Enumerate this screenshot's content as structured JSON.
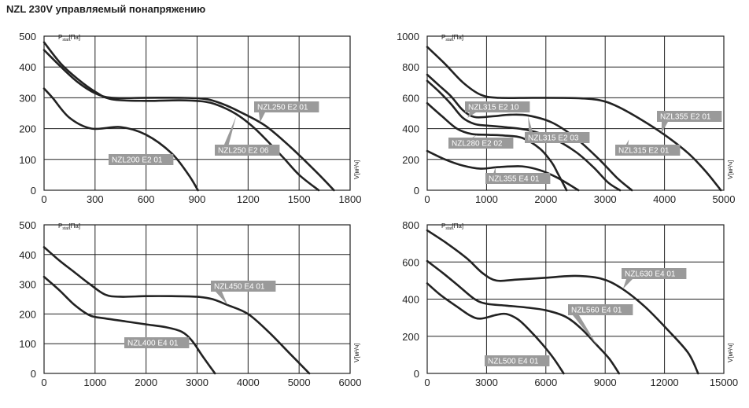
{
  "page_title": "NZL 230V управляемый понапряжению",
  "y_axis_label": {
    "main": "P",
    "sub": "stat",
    "unit": "[Па]"
  },
  "x_axis_label": {
    "main": "V",
    "unit": "[м³/ч]"
  },
  "chart_data": [
    {
      "type": "line",
      "grid": true,
      "xlim": [
        0,
        1800
      ],
      "ylim": [
        0,
        500
      ],
      "xticks": [
        0,
        300,
        600,
        900,
        1200,
        1500,
        1800
      ],
      "yticks": [
        0,
        100,
        200,
        300,
        400,
        500
      ],
      "series": [
        {
          "name": "NZL200 E2 01",
          "points": [
            [
              0,
              330
            ],
            [
              50,
              300
            ],
            [
              150,
              235
            ],
            [
              280,
              200
            ],
            [
              450,
              205
            ],
            [
              600,
              180
            ],
            [
              750,
              120
            ],
            [
              850,
              50
            ],
            [
              905,
              0
            ]
          ]
        },
        {
          "name": "NZL250 E2 06",
          "points": [
            [
              0,
              480
            ],
            [
              100,
              410
            ],
            [
              200,
              360
            ],
            [
              300,
              320
            ],
            [
              400,
              295
            ],
            [
              600,
              290
            ],
            [
              800,
              292
            ],
            [
              950,
              287
            ],
            [
              1050,
              270
            ],
            [
              1150,
              240
            ],
            [
              1250,
              195
            ],
            [
              1400,
              110
            ],
            [
              1500,
              50
            ],
            [
              1615,
              0
            ]
          ]
        },
        {
          "name": "NZL250 E2 01",
          "points": [
            [
              0,
              455
            ],
            [
              100,
              400
            ],
            [
              200,
              350
            ],
            [
              300,
              315
            ],
            [
              400,
              300
            ],
            [
              600,
              300
            ],
            [
              800,
              300
            ],
            [
              950,
              296
            ],
            [
              1050,
              280
            ],
            [
              1150,
              255
            ],
            [
              1300,
              210
            ],
            [
              1450,
              140
            ],
            [
              1600,
              60
            ],
            [
              1705,
              0
            ]
          ]
        }
      ]
    },
    {
      "type": "line",
      "grid": true,
      "xlim": [
        0,
        5000
      ],
      "ylim": [
        0,
        1000
      ],
      "xticks": [
        0,
        1000,
        2000,
        3000,
        4000,
        5000
      ],
      "yticks": [
        0,
        200,
        400,
        600,
        800,
        1000
      ],
      "series": [
        {
          "name": "NZL355 E4 01",
          "points": [
            [
              0,
              255
            ],
            [
              300,
              200
            ],
            [
              600,
              160
            ],
            [
              900,
              140
            ],
            [
              1200,
              150
            ],
            [
              1600,
              155
            ],
            [
              1900,
              130
            ],
            [
              2200,
              80
            ],
            [
              2550,
              0
            ]
          ]
        },
        {
          "name": "NZL280 E2 02",
          "points": [
            [
              0,
              565
            ],
            [
              250,
              480
            ],
            [
              500,
              400
            ],
            [
              750,
              365
            ],
            [
              1000,
              360
            ],
            [
              1300,
              355
            ],
            [
              1600,
              340
            ],
            [
              1900,
              270
            ],
            [
              2100,
              180
            ],
            [
              2200,
              110
            ],
            [
              2350,
              0
            ]
          ]
        },
        {
          "name": "NZL315 E2 10",
          "points": [
            [
              0,
              710
            ],
            [
              200,
              640
            ],
            [
              400,
              560
            ],
            [
              600,
              470
            ],
            [
              800,
              430
            ],
            [
              1000,
              420
            ],
            [
              1300,
              410
            ],
            [
              1700,
              390
            ],
            [
              2100,
              340
            ],
            [
              2500,
              250
            ],
            [
              2800,
              150
            ],
            [
              3050,
              50
            ],
            [
              3250,
              0
            ]
          ]
        },
        {
          "name": "NZL315 E2 03",
          "points": [
            [
              0,
              750
            ],
            [
              200,
              680
            ],
            [
              400,
              610
            ],
            [
              600,
              520
            ],
            [
              800,
              475
            ],
            [
              1100,
              480
            ],
            [
              1400,
              490
            ],
            [
              1700,
              485
            ],
            [
              2100,
              440
            ],
            [
              2500,
              340
            ],
            [
              2900,
              200
            ],
            [
              3200,
              80
            ],
            [
              3450,
              0
            ]
          ]
        },
        {
          "name": "NZL355 E2 01",
          "points": [
            [
              0,
              930
            ],
            [
              300,
              820
            ],
            [
              600,
              700
            ],
            [
              900,
              620
            ],
            [
              1200,
              600
            ],
            [
              1800,
              600
            ],
            [
              2500,
              598
            ],
            [
              2900,
              585
            ],
            [
              3200,
              545
            ],
            [
              3600,
              460
            ],
            [
              4000,
              360
            ],
            [
              4400,
              240
            ],
            [
              4700,
              120
            ],
            [
              4950,
              0
            ]
          ]
        }
      ]
    },
    {
      "type": "line",
      "grid": true,
      "xlim": [
        0,
        6000
      ],
      "ylim": [
        0,
        500
      ],
      "xticks": [
        0,
        1000,
        2000,
        3000,
        4000,
        5000,
        6000
      ],
      "yticks": [
        0,
        100,
        200,
        300,
        400,
        500
      ],
      "series": [
        {
          "name": "NZL400 E4 01",
          "points": [
            [
              0,
              325
            ],
            [
              300,
              280
            ],
            [
              600,
              230
            ],
            [
              900,
              195
            ],
            [
              1200,
              185
            ],
            [
              1600,
              175
            ],
            [
              2000,
              165
            ],
            [
              2400,
              155
            ],
            [
              2700,
              140
            ],
            [
              2900,
              110
            ],
            [
              3100,
              60
            ],
            [
              3350,
              0
            ]
          ]
        },
        {
          "name": "NZL450 E4 01",
          "points": [
            [
              0,
              425
            ],
            [
              300,
              380
            ],
            [
              600,
              340
            ],
            [
              900,
              300
            ],
            [
              1200,
              265
            ],
            [
              1500,
              258
            ],
            [
              2000,
              260
            ],
            [
              2500,
              260
            ],
            [
              3000,
              258
            ],
            [
              3300,
              250
            ],
            [
              3600,
              230
            ],
            [
              4000,
              200
            ],
            [
              4400,
              140
            ],
            [
              4800,
              70
            ],
            [
              5200,
              0
            ]
          ]
        }
      ]
    },
    {
      "type": "line",
      "grid": true,
      "xlim": [
        0,
        15000
      ],
      "ylim": [
        0,
        800
      ],
      "xticks": [
        0,
        3000,
        6000,
        9000,
        12000,
        15000
      ],
      "yticks": [
        0,
        200,
        400,
        600,
        800
      ],
      "series": [
        {
          "name": "NZL500 E4 01",
          "points": [
            [
              0,
              485
            ],
            [
              700,
              420
            ],
            [
              1500,
              360
            ],
            [
              2200,
              310
            ],
            [
              2700,
              295
            ],
            [
              3500,
              315
            ],
            [
              4000,
              320
            ],
            [
              4600,
              290
            ],
            [
              5200,
              230
            ],
            [
              5800,
              160
            ],
            [
              6400,
              80
            ],
            [
              6900,
              0
            ]
          ]
        },
        {
          "name": "NZL560 E4 01",
          "points": [
            [
              0,
              605
            ],
            [
              800,
              540
            ],
            [
              1600,
              470
            ],
            [
              2400,
              400
            ],
            [
              3000,
              375
            ],
            [
              4000,
              365
            ],
            [
              5000,
              355
            ],
            [
              6000,
              340
            ],
            [
              7000,
              305
            ],
            [
              7800,
              240
            ],
            [
              8600,
              150
            ],
            [
              9200,
              80
            ],
            [
              9700,
              0
            ]
          ]
        },
        {
          "name": "NZL630 E4 01",
          "points": [
            [
              0,
              770
            ],
            [
              1000,
              700
            ],
            [
              2000,
              620
            ],
            [
              2800,
              540
            ],
            [
              3500,
              500
            ],
            [
              4500,
              505
            ],
            [
              6000,
              515
            ],
            [
              7500,
              525
            ],
            [
              8800,
              510
            ],
            [
              9800,
              460
            ],
            [
              11000,
              360
            ],
            [
              12200,
              230
            ],
            [
              13200,
              110
            ],
            [
              13700,
              0
            ]
          ]
        }
      ]
    }
  ]
}
